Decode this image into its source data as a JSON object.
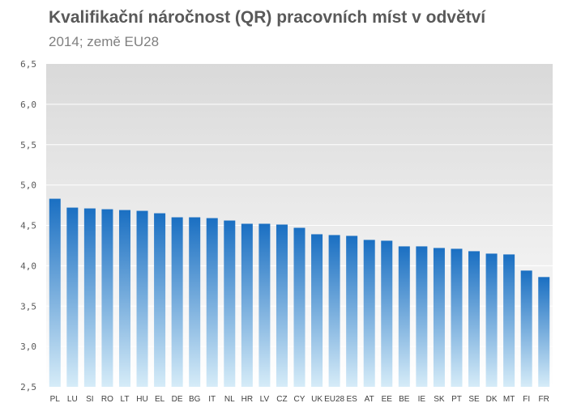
{
  "chart_data": {
    "type": "bar",
    "title": "Kvalifikační náročnost (QR)  pracovních míst v odvětví",
    "subtitle": "2014; země EU28",
    "xlabel": "",
    "ylabel": "",
    "categories": [
      "PL",
      "LU",
      "SI",
      "RO",
      "LT",
      "HU",
      "EL",
      "DE",
      "BG",
      "IT",
      "NL",
      "HR",
      "LV",
      "CZ",
      "CY",
      "UK",
      "EU28",
      "ES",
      "AT",
      "EE",
      "BE",
      "IE",
      "SK",
      "PT",
      "SE",
      "DK",
      "MT",
      "FI",
      "FR"
    ],
    "values": [
      4.83,
      4.72,
      4.71,
      4.7,
      4.69,
      4.68,
      4.65,
      4.6,
      4.6,
      4.59,
      4.56,
      4.52,
      4.52,
      4.51,
      4.47,
      4.39,
      4.38,
      4.37,
      4.32,
      4.31,
      4.24,
      4.24,
      4.22,
      4.21,
      4.18,
      4.15,
      4.14,
      3.94,
      3.86
    ],
    "ylim": [
      2.5,
      6.5
    ],
    "yticks": [
      "2,5",
      "3,0",
      "3,5",
      "4,0",
      "4,5",
      "5,0",
      "5,5",
      "6,0",
      "6,5"
    ],
    "grid": true,
    "legend": "none",
    "colors": {
      "bar_top": "#1a6fc2",
      "bar_bottom": "#d6ecf8",
      "plot_bg_top": "#d9d9d9",
      "plot_bg_bottom": "#ffffff",
      "grid": "#ffffff"
    }
  }
}
